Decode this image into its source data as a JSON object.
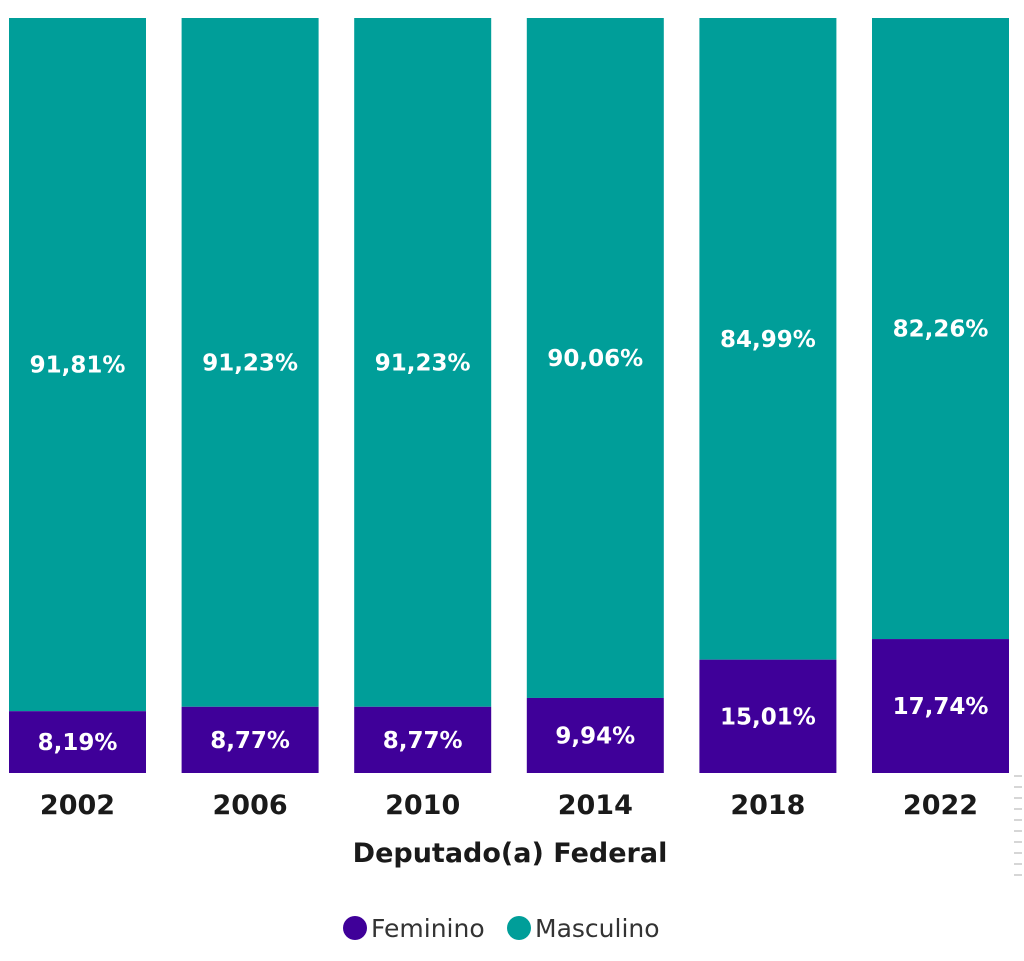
{
  "chart_data": {
    "type": "bar",
    "stacked": true,
    "normalized": true,
    "categories": [
      "2002",
      "2006",
      "2010",
      "2014",
      "2018",
      "2022"
    ],
    "series": [
      {
        "name": "Feminino",
        "color": "#3f0099",
        "values": [
          8.19,
          8.77,
          8.77,
          9.94,
          15.01,
          17.74
        ],
        "labels": [
          "8,19%",
          "8,77%",
          "8,77%",
          "9,94%",
          "15,01%",
          "17,74%"
        ]
      },
      {
        "name": "Masculino",
        "color": "#009e99",
        "values": [
          91.81,
          91.23,
          91.23,
          90.06,
          84.99,
          82.26
        ],
        "labels": [
          "91,81%",
          "91,23%",
          "91,23%",
          "90,06%",
          "84,99%",
          "82,26%"
        ]
      }
    ],
    "xlabel": "Deputado(a) Federal",
    "ylim": [
      0,
      100
    ],
    "grid": false,
    "legend": "bottom-center"
  }
}
